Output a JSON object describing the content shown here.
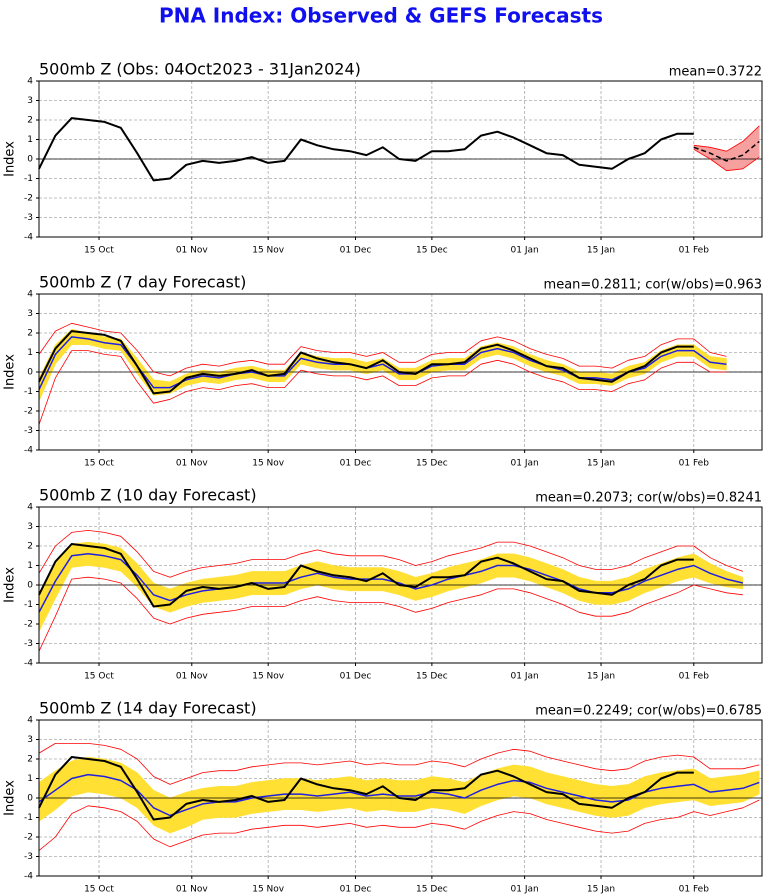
{
  "title": "PNA Index: Observed & GEFS Forecasts",
  "chart_data": [
    {
      "type": "line",
      "title": "500mb Z (Obs: 04Oct2023 - 31Jan2024)",
      "annotation": "mean=0.3722",
      "ylabel": "Index",
      "x": [
        0,
        3,
        6,
        9,
        12,
        15,
        18,
        21,
        24,
        27,
        30,
        33,
        36,
        39,
        42,
        45,
        48,
        51,
        54,
        57,
        60,
        63,
        66,
        69,
        72,
        75,
        78,
        81,
        84,
        87,
        90,
        93,
        96,
        99,
        102,
        105,
        108,
        111,
        114,
        117,
        120,
        123,
        126,
        129,
        132
      ],
      "xlim": [
        0,
        132.5
      ],
      "ylim": [
        -4,
        4
      ],
      "yticks": [
        -4,
        -3,
        -2,
        -1,
        0,
        1,
        2,
        3,
        4
      ],
      "grid": true,
      "xticks": [
        {
          "value": 11,
          "label": "15 Oct"
        },
        {
          "value": 28,
          "label": "01 Nov"
        },
        {
          "value": 42,
          "label": "15 Nov"
        },
        {
          "value": 58,
          "label": "01 Dec"
        },
        {
          "value": 72,
          "label": "15 Dec"
        },
        {
          "value": 89,
          "label": "01 Jan"
        },
        {
          "value": 103,
          "label": "15 Jan"
        },
        {
          "value": 120,
          "label": "01 Feb"
        }
      ],
      "series": [
        {
          "color": "#ff0000",
          "width": 1.5,
          "dash": true,
          "values": [
            null,
            null,
            null,
            null,
            null,
            null,
            null,
            null,
            null,
            null,
            null,
            null,
            null,
            null,
            null,
            null,
            null,
            null,
            null,
            null,
            null,
            null,
            null,
            null,
            null,
            null,
            null,
            null,
            null,
            null,
            null,
            null,
            null,
            null,
            null,
            null,
            null,
            null,
            null,
            null,
            0.6,
            0.3,
            -0.1,
            0.2,
            0.9
          ],
          "band": [
            null,
            null,
            null,
            null,
            null,
            null,
            null,
            null,
            null,
            null,
            null,
            null,
            null,
            null,
            null,
            null,
            null,
            null,
            null,
            null,
            null,
            null,
            null,
            null,
            null,
            null,
            null,
            null,
            null,
            null,
            null,
            null,
            null,
            null,
            null,
            null,
            null,
            null,
            null,
            null,
            0.1,
            0.3,
            0.5,
            0.7,
            0.8
          ],
          "band_color": "#f7a0a0"
        },
        {
          "color": "#000000",
          "width": 2,
          "values": [
            -0.5,
            1.2,
            2.1,
            2.0,
            1.9,
            1.6,
            0.3,
            -1.1,
            -1.0,
            -0.3,
            -0.1,
            -0.2,
            -0.1,
            0.1,
            -0.2,
            -0.1,
            1.0,
            0.7,
            0.5,
            0.4,
            0.2,
            0.6,
            0.0,
            -0.1,
            0.4,
            0.4,
            0.5,
            1.2,
            1.4,
            1.1,
            0.7,
            0.3,
            0.2,
            -0.3,
            -0.4,
            -0.5,
            0.0,
            0.3,
            1.0,
            1.3,
            1.3,
            null,
            null,
            null,
            null
          ]
        }
      ]
    },
    {
      "type": "line",
      "title": "500mb Z (7 day Forecast)",
      "annotation": "mean=0.2811; cor(w/obs)=0.963",
      "ylabel": "Index",
      "x": [
        0,
        3,
        6,
        9,
        12,
        15,
        18,
        21,
        24,
        27,
        30,
        33,
        36,
        39,
        42,
        45,
        48,
        51,
        54,
        57,
        60,
        63,
        66,
        69,
        72,
        75,
        78,
        81,
        84,
        87,
        90,
        93,
        96,
        99,
        102,
        105,
        108,
        111,
        114,
        117,
        120,
        123,
        126
      ],
      "xlim": [
        0,
        132.5
      ],
      "ylim": [
        -4,
        4
      ],
      "yticks": [
        -4,
        -3,
        -2,
        -1,
        0,
        1,
        2,
        3,
        4
      ],
      "grid": true,
      "xticks": [
        {
          "value": 11,
          "label": "15 Oct"
        },
        {
          "value": 28,
          "label": "01 Nov"
        },
        {
          "value": 42,
          "label": "15 Nov"
        },
        {
          "value": 58,
          "label": "01 Dec"
        },
        {
          "value": 72,
          "label": "15 Dec"
        },
        {
          "value": 89,
          "label": "01 Jan"
        },
        {
          "value": 103,
          "label": "15 Jan"
        },
        {
          "value": 120,
          "label": "01 Feb"
        }
      ],
      "series": [
        {
          "color": "#2020e0",
          "width": 1.5,
          "values": [
            -0.9,
            0.9,
            1.8,
            1.7,
            1.5,
            1.4,
            0.3,
            -0.8,
            -0.8,
            -0.4,
            -0.2,
            -0.3,
            -0.1,
            0.0,
            -0.2,
            -0.2,
            0.7,
            0.5,
            0.4,
            0.4,
            0.2,
            0.4,
            -0.1,
            -0.1,
            0.3,
            0.4,
            0.4,
            1.0,
            1.2,
            1.0,
            0.6,
            0.3,
            0.1,
            -0.3,
            -0.3,
            -0.4,
            0.0,
            0.2,
            0.8,
            1.1,
            1.1,
            0.5,
            0.4
          ],
          "band": [
            0.6,
            0.5,
            0.4,
            0.3,
            0.3,
            0.3,
            0.4,
            0.4,
            0.3,
            0.3,
            0.3,
            0.3,
            0.3,
            0.3,
            0.3,
            0.3,
            0.3,
            0.3,
            0.3,
            0.3,
            0.3,
            0.3,
            0.3,
            0.3,
            0.3,
            0.3,
            0.3,
            0.3,
            0.3,
            0.3,
            0.3,
            0.3,
            0.3,
            0.3,
            0.3,
            0.3,
            0.3,
            0.3,
            0.3,
            0.3,
            0.3,
            0.3,
            0.3
          ],
          "band_color": "#ffe033",
          "envelope": [
            1.8,
            1.2,
            0.7,
            0.6,
            0.6,
            0.6,
            0.8,
            0.8,
            0.6,
            0.6,
            0.6,
            0.6,
            0.6,
            0.6,
            0.6,
            0.6,
            0.6,
            0.6,
            0.6,
            0.6,
            0.6,
            0.6,
            0.6,
            0.6,
            0.6,
            0.6,
            0.6,
            0.6,
            0.6,
            0.6,
            0.6,
            0.6,
            0.6,
            0.6,
            0.6,
            0.6,
            0.6,
            0.6,
            0.6,
            0.6,
            0.6,
            0.5,
            0.4
          ],
          "envelope_color": "#ff0000"
        },
        {
          "color": "#000000",
          "width": 2,
          "values": [
            -0.5,
            1.2,
            2.1,
            2.0,
            1.9,
            1.6,
            0.3,
            -1.1,
            -1.0,
            -0.3,
            -0.1,
            -0.2,
            -0.1,
            0.1,
            -0.2,
            -0.1,
            1.0,
            0.7,
            0.5,
            0.4,
            0.2,
            0.6,
            0.0,
            -0.1,
            0.4,
            0.4,
            0.5,
            1.2,
            1.4,
            1.1,
            0.7,
            0.3,
            0.2,
            -0.3,
            -0.4,
            -0.5,
            0.0,
            0.3,
            1.0,
            1.3,
            1.3,
            null,
            null
          ]
        }
      ]
    },
    {
      "type": "line",
      "title": "500mb Z (10 day Forecast)",
      "annotation": "mean=0.2073; cor(w/obs)=0.8241",
      "ylabel": "Index",
      "x": [
        0,
        3,
        6,
        9,
        12,
        15,
        18,
        21,
        24,
        27,
        30,
        33,
        36,
        39,
        42,
        45,
        48,
        51,
        54,
        57,
        60,
        63,
        66,
        69,
        72,
        75,
        78,
        81,
        84,
        87,
        90,
        93,
        96,
        99,
        102,
        105,
        108,
        111,
        114,
        117,
        120,
        123,
        126,
        129
      ],
      "xlim": [
        0,
        132.5
      ],
      "ylim": [
        -4,
        4
      ],
      "yticks": [
        -4,
        -3,
        -2,
        -1,
        0,
        1,
        2,
        3,
        4
      ],
      "grid": true,
      "xticks": [
        {
          "value": 11,
          "label": "15 Oct"
        },
        {
          "value": 28,
          "label": "01 Nov"
        },
        {
          "value": 42,
          "label": "15 Nov"
        },
        {
          "value": 58,
          "label": "01 Dec"
        },
        {
          "value": 72,
          "label": "15 Dec"
        },
        {
          "value": 89,
          "label": "01 Jan"
        },
        {
          "value": 103,
          "label": "15 Jan"
        },
        {
          "value": 120,
          "label": "01 Feb"
        }
      ],
      "series": [
        {
          "color": "#2020e0",
          "width": 1.5,
          "values": [
            -1.4,
            0.2,
            1.5,
            1.6,
            1.5,
            1.3,
            0.5,
            -0.5,
            -0.8,
            -0.5,
            -0.3,
            -0.2,
            -0.1,
            0.1,
            0.1,
            0.1,
            0.4,
            0.6,
            0.4,
            0.3,
            0.3,
            0.3,
            0.1,
            -0.2,
            0.0,
            0.3,
            0.5,
            0.7,
            1.0,
            1.0,
            0.8,
            0.5,
            0.2,
            -0.2,
            -0.4,
            -0.4,
            -0.2,
            0.2,
            0.5,
            0.8,
            1.0,
            0.6,
            0.3,
            0.1
          ],
          "band": [
            1.0,
            0.9,
            0.6,
            0.6,
            0.6,
            0.6,
            0.6,
            0.6,
            0.6,
            0.6,
            0.6,
            0.6,
            0.6,
            0.6,
            0.6,
            0.6,
            0.6,
            0.6,
            0.6,
            0.6,
            0.6,
            0.6,
            0.6,
            0.6,
            0.6,
            0.6,
            0.6,
            0.6,
            0.6,
            0.6,
            0.6,
            0.6,
            0.6,
            0.6,
            0.6,
            0.6,
            0.6,
            0.6,
            0.6,
            0.6,
            0.6,
            0.5,
            0.4,
            0.3
          ],
          "band_color": "#ffe033",
          "envelope": [
            2.0,
            1.8,
            1.2,
            1.2,
            1.2,
            1.2,
            1.2,
            1.2,
            1.2,
            1.2,
            1.2,
            1.2,
            1.2,
            1.2,
            1.2,
            1.2,
            1.2,
            1.2,
            1.2,
            1.2,
            1.2,
            1.2,
            1.2,
            1.2,
            1.2,
            1.2,
            1.2,
            1.2,
            1.2,
            1.2,
            1.2,
            1.2,
            1.2,
            1.2,
            1.2,
            1.2,
            1.2,
            1.2,
            1.2,
            1.2,
            1.0,
            0.8,
            0.7,
            0.6
          ],
          "envelope_color": "#ff0000"
        },
        {
          "color": "#000000",
          "width": 2,
          "values": [
            -0.5,
            1.2,
            2.1,
            2.0,
            1.9,
            1.6,
            0.3,
            -1.1,
            -1.0,
            -0.3,
            -0.1,
            -0.2,
            -0.1,
            0.1,
            -0.2,
            -0.1,
            1.0,
            0.7,
            0.5,
            0.4,
            0.2,
            0.6,
            0.0,
            -0.1,
            0.4,
            0.4,
            0.5,
            1.2,
            1.4,
            1.1,
            0.7,
            0.3,
            0.2,
            -0.3,
            -0.4,
            -0.5,
            0.0,
            0.3,
            1.0,
            1.3,
            1.3,
            null,
            null,
            null
          ]
        }
      ]
    },
    {
      "type": "line",
      "title": "500mb Z (14 day Forecast)",
      "annotation": "mean=0.2249; cor(w/obs)=0.6785",
      "ylabel": "Index",
      "x": [
        0,
        3,
        6,
        9,
        12,
        15,
        18,
        21,
        24,
        27,
        30,
        33,
        36,
        39,
        42,
        45,
        48,
        51,
        54,
        57,
        60,
        63,
        66,
        69,
        72,
        75,
        78,
        81,
        84,
        87,
        90,
        93,
        96,
        99,
        102,
        105,
        108,
        111,
        114,
        117,
        120,
        123,
        126,
        129,
        132
      ],
      "xlim": [
        0,
        132.5
      ],
      "ylim": [
        -4,
        4
      ],
      "yticks": [
        -4,
        -3,
        -2,
        -1,
        0,
        1,
        2,
        3,
        4
      ],
      "grid": true,
      "xticks": [
        {
          "value": 11,
          "label": "15 Oct"
        },
        {
          "value": 28,
          "label": "01 Nov"
        },
        {
          "value": 42,
          "label": "15 Nov"
        },
        {
          "value": 58,
          "label": "01 Dec"
        },
        {
          "value": 72,
          "label": "15 Dec"
        },
        {
          "value": 89,
          "label": "01 Jan"
        },
        {
          "value": 103,
          "label": "15 Jan"
        },
        {
          "value": 120,
          "label": "01 Feb"
        }
      ],
      "series": [
        {
          "color": "#2020e0",
          "width": 1.5,
          "values": [
            -0.2,
            0.4,
            1.0,
            1.2,
            1.1,
            0.9,
            0.4,
            -0.5,
            -0.9,
            -0.6,
            -0.3,
            -0.2,
            -0.2,
            0.0,
            0.1,
            0.2,
            0.2,
            0.1,
            0.2,
            0.3,
            0.1,
            0.2,
            0.1,
            0.1,
            0.3,
            0.2,
            0.0,
            0.4,
            0.7,
            0.9,
            0.8,
            0.5,
            0.3,
            0.1,
            -0.1,
            -0.2,
            -0.1,
            0.3,
            0.5,
            0.6,
            0.7,
            0.3,
            0.4,
            0.5,
            0.8
          ],
          "band": [
            1.0,
            1.0,
            0.9,
            0.9,
            0.9,
            0.9,
            0.9,
            0.9,
            0.9,
            0.9,
            0.8,
            0.8,
            0.8,
            0.8,
            0.8,
            0.8,
            0.8,
            0.8,
            0.8,
            0.8,
            0.8,
            0.8,
            0.8,
            0.8,
            0.8,
            0.8,
            0.8,
            0.8,
            0.8,
            0.8,
            0.8,
            0.8,
            0.8,
            0.8,
            0.8,
            0.8,
            0.8,
            0.8,
            0.8,
            0.8,
            0.8,
            0.7,
            0.7,
            0.7,
            0.6
          ],
          "band_color": "#ffe033",
          "envelope": [
            2.5,
            2.4,
            1.8,
            1.6,
            1.6,
            1.6,
            1.6,
            1.6,
            1.6,
            1.6,
            1.6,
            1.6,
            1.6,
            1.6,
            1.6,
            1.6,
            1.6,
            1.6,
            1.6,
            1.6,
            1.6,
            1.6,
            1.6,
            1.6,
            1.6,
            1.6,
            1.6,
            1.6,
            1.6,
            1.6,
            1.6,
            1.6,
            1.6,
            1.6,
            1.6,
            1.6,
            1.6,
            1.6,
            1.6,
            1.6,
            1.4,
            1.2,
            1.1,
            1.0,
            0.9
          ],
          "envelope_color": "#ff0000"
        },
        {
          "color": "#000000",
          "width": 2,
          "values": [
            -0.5,
            1.2,
            2.1,
            2.0,
            1.9,
            1.6,
            0.3,
            -1.1,
            -1.0,
            -0.3,
            -0.1,
            -0.2,
            -0.1,
            0.1,
            -0.2,
            -0.1,
            1.0,
            0.7,
            0.5,
            0.4,
            0.2,
            0.6,
            0.0,
            -0.1,
            0.4,
            0.4,
            0.5,
            1.2,
            1.4,
            1.1,
            0.7,
            0.3,
            0.2,
            -0.3,
            -0.4,
            -0.5,
            0.0,
            0.3,
            1.0,
            1.3,
            1.3,
            null,
            null,
            null,
            null
          ]
        }
      ]
    }
  ]
}
